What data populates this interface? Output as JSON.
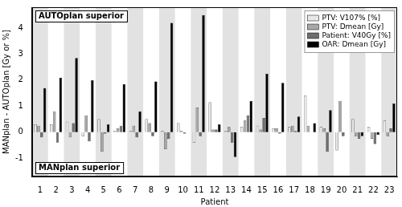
{
  "chart_data": {
    "type": "bar",
    "x_label": "Patient",
    "y_label": "MANplan - AUTOplan [Gy or %]",
    "annotations": [
      "AUTOplan superior",
      "MANplan superior"
    ],
    "categories": [
      "1",
      "2",
      "3",
      "4",
      "5",
      "6",
      "7",
      "8",
      "9",
      "10",
      "11",
      "12",
      "13",
      "14",
      "15",
      "16",
      "17",
      "18",
      "19",
      "20",
      "21",
      "22",
      "23"
    ],
    "series": [
      {
        "name": "PTV: V107% [%]",
        "color": "#e8e8e8",
        "values": [
          0.3,
          0.3,
          0.4,
          -0.15,
          0.5,
          0.05,
          0.05,
          0.5,
          0.05,
          0.35,
          -0.4,
          1.15,
          0.05,
          0.2,
          0.25,
          0.15,
          0.2,
          1.4,
          0.2,
          -0.7,
          0.5,
          0.2,
          0.45
        ]
      },
      {
        "name": "PTV: Dmean [Gy]",
        "color": "#a8a8a8",
        "values": [
          0.25,
          0.8,
          -0.2,
          0.65,
          -0.75,
          0.15,
          0.25,
          0.35,
          -0.65,
          0.05,
          0.95,
          0.1,
          0.2,
          0.45,
          0.1,
          0.15,
          0.25,
          0.25,
          0.15,
          1.2,
          -0.15,
          -0.25,
          -0.15
        ]
      },
      {
        "name": "Patient: V40Gy [%]",
        "color": "#6e6e6e",
        "values": [
          -0.2,
          -0.4,
          0.35,
          -0.35,
          -0.05,
          0.25,
          -0.2,
          -0.15,
          -0.25,
          -0.05,
          -0.15,
          0.1,
          -0.4,
          0.65,
          0.55,
          -0.05,
          0.05,
          0.0,
          -0.75,
          -0.15,
          -0.25,
          -0.45,
          0.15
        ]
      },
      {
        "name": "OAR: Dmean [Gy]",
        "color": "#000000",
        "values": [
          1.7,
          2.1,
          2.85,
          2.0,
          0.3,
          1.85,
          0.8,
          1.95,
          4.2,
          0.0,
          4.5,
          0.3,
          -0.95,
          1.2,
          2.25,
          1.9,
          0.6,
          0.35,
          0.85,
          0.0,
          -0.15,
          -0.1,
          1.1
        ]
      }
    ],
    "ylim": [
      -1.7,
      4.8
    ],
    "yticks": [
      -1,
      0,
      1,
      2,
      3,
      4
    ],
    "grid": false,
    "legend": "upper right"
  }
}
